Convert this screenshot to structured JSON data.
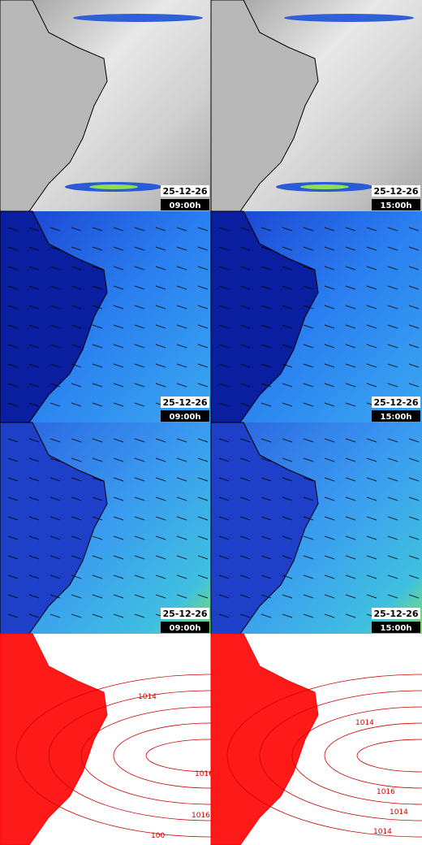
{
  "panels": [
    {
      "date": "25-12-26",
      "time": "09:00h",
      "labels": []
    },
    {
      "date": "25-12-26",
      "time": "15:00h",
      "labels": []
    },
    {
      "date": "25-12-26",
      "time": "09:00h",
      "labels": []
    },
    {
      "date": "25-12-26",
      "time": "15:00h",
      "labels": []
    },
    {
      "date": "25-12-26",
      "time": "09:00h",
      "labels": []
    },
    {
      "date": "25-12-26",
      "time": "15:00h",
      "labels": []
    },
    {
      "labels": [
        "1014",
        "1016",
        "1016",
        "100"
      ]
    },
    {
      "labels": [
        "1014",
        "1016",
        "1014",
        "1014"
      ]
    }
  ]
}
